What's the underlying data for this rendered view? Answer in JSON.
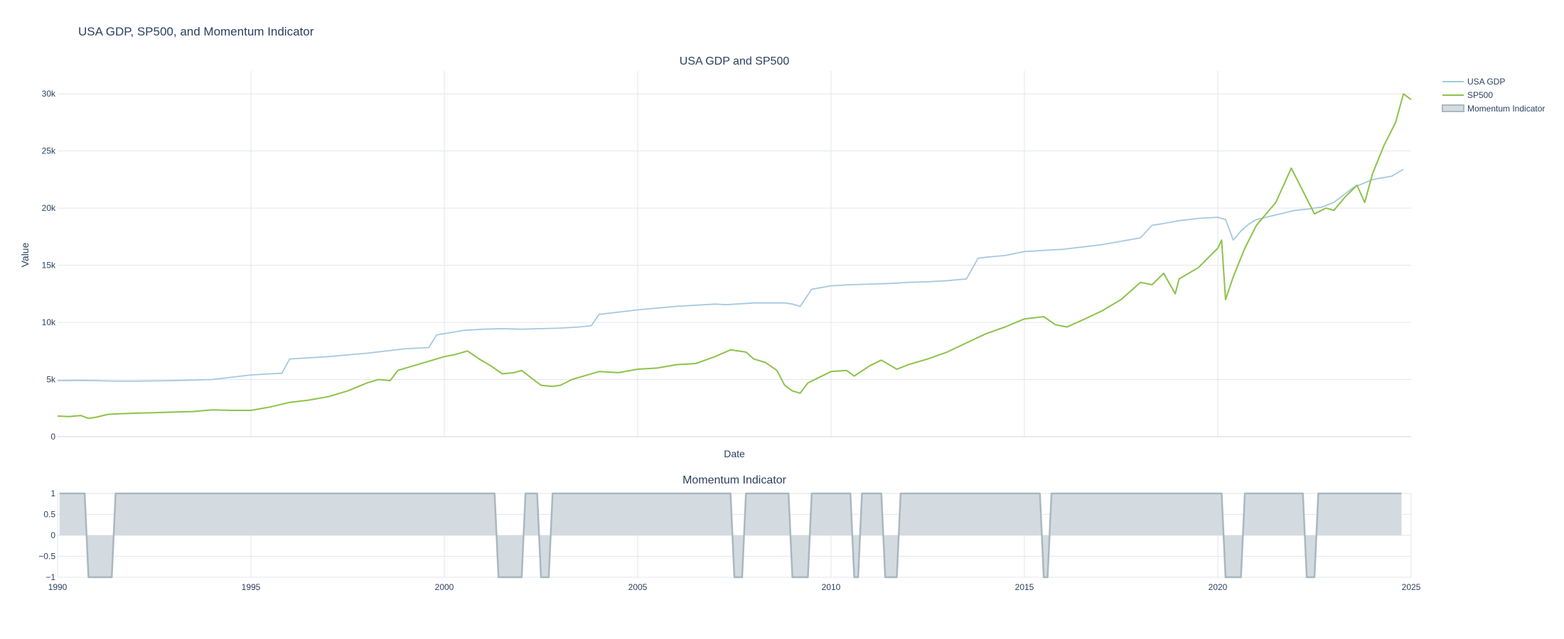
{
  "title": "USA GDP, SP500, and Momentum Indicator",
  "colors": {
    "gdp": "#a6c8e0",
    "sp500": "#8cc24a",
    "momentum_line": "#aab7bf",
    "momentum_fill": "#d3dbe0",
    "grid": "#e3e6ec",
    "text": "#2a3f5f"
  },
  "chart_data": [
    {
      "type": "line",
      "title": "USA GDP and SP500",
      "xlabel": "Date",
      "ylabel": "Value",
      "xlim": [
        1990,
        2025
      ],
      "ylim": [
        0,
        32000
      ],
      "x_ticks": [
        1995,
        2000,
        2005,
        2010,
        2015,
        2020
      ],
      "y_ticks": [
        0,
        5000,
        10000,
        15000,
        20000,
        25000,
        30000
      ],
      "y_tick_labels": [
        "0",
        "5k",
        "10k",
        "15k",
        "20k",
        "25k",
        "30k"
      ],
      "grid": true,
      "legend_position": "top-right",
      "series": [
        {
          "name": "USA GDP",
          "color": "#a6c8e0",
          "x": [
            1990.0,
            1990.5,
            1991.0,
            1991.5,
            1992.0,
            1993.0,
            1993.5,
            1994.0,
            1995.0,
            1995.5,
            1995.8,
            1996.0,
            1997.0,
            1998.0,
            1999.0,
            1999.6,
            1999.8,
            2000.5,
            2001.0,
            2001.5,
            2002.0,
            2002.5,
            2003.0,
            2003.5,
            2003.8,
            2004.0,
            2005.0,
            2006.0,
            2007.0,
            2007.3,
            2008.0,
            2008.8,
            2009.0,
            2009.2,
            2009.5,
            2010.0,
            2010.5,
            2011.0,
            2011.5,
            2012.0,
            2012.5,
            2013.0,
            2013.5,
            2013.8,
            2014.0,
            2014.5,
            2015.0,
            2015.5,
            2016.0,
            2017.0,
            2018.0,
            2018.3,
            2018.5,
            2019.0,
            2019.5,
            2020.0,
            2020.2,
            2020.4,
            2020.6,
            2020.8,
            2021.0,
            2021.5,
            2022.0,
            2022.3,
            2022.7,
            2023.0,
            2023.5,
            2024.0,
            2024.5,
            2024.8
          ],
          "y": [
            4900,
            4920,
            4900,
            4850,
            4860,
            4900,
            4950,
            5000,
            5400,
            5500,
            5550,
            6800,
            7000,
            7300,
            7700,
            7800,
            8900,
            9300,
            9400,
            9450,
            9400,
            9450,
            9500,
            9600,
            9700,
            10700,
            11100,
            11400,
            11600,
            11550,
            11700,
            11700,
            11600,
            11400,
            12900,
            13200,
            13300,
            13350,
            13400,
            13500,
            13550,
            13650,
            13800,
            15600,
            15700,
            15850,
            16200,
            16300,
            16400,
            16800,
            17400,
            18500,
            18600,
            18900,
            19100,
            19200,
            19000,
            17200,
            18000,
            18600,
            19000,
            19400,
            19800,
            19900,
            20100,
            20500,
            21800,
            22500,
            22800,
            23400
          ]
        },
        {
          "name": "SP500",
          "color": "#8cc24a",
          "x": [
            1990.0,
            1990.3,
            1990.6,
            1990.8,
            1991.0,
            1991.3,
            1991.6,
            1992.0,
            1992.5,
            1993.0,
            1993.5,
            1994.0,
            1994.5,
            1995.0,
            1995.5,
            1996.0,
            1996.5,
            1997.0,
            1997.5,
            1998.0,
            1998.3,
            1998.6,
            1998.8,
            1999.0,
            1999.5,
            2000.0,
            2000.3,
            2000.6,
            2000.9,
            2001.2,
            2001.5,
            2001.8,
            2002.0,
            2002.3,
            2002.5,
            2002.8,
            2003.0,
            2003.3,
            2003.6,
            2004.0,
            2004.5,
            2005.0,
            2005.5,
            2006.0,
            2006.5,
            2007.0,
            2007.4,
            2007.8,
            2008.0,
            2008.3,
            2008.6,
            2008.8,
            2009.0,
            2009.2,
            2009.4,
            2009.7,
            2010.0,
            2010.4,
            2010.6,
            2011.0,
            2011.3,
            2011.7,
            2012.0,
            2012.5,
            2013.0,
            2013.5,
            2014.0,
            2014.5,
            2015.0,
            2015.5,
            2015.8,
            2016.1,
            2016.5,
            2017.0,
            2017.5,
            2018.0,
            2018.3,
            2018.6,
            2018.9,
            2019.0,
            2019.5,
            2020.0,
            2020.1,
            2020.2,
            2020.4,
            2020.7,
            2021.0,
            2021.5,
            2021.9,
            2022.2,
            2022.5,
            2022.8,
            2023.0,
            2023.3,
            2023.6,
            2023.8,
            2024.0,
            2024.3,
            2024.6,
            2024.8,
            2025.0
          ],
          "y": [
            1800,
            1750,
            1850,
            1600,
            1700,
            1950,
            2000,
            2050,
            2100,
            2150,
            2200,
            2350,
            2300,
            2300,
            2600,
            3000,
            3200,
            3500,
            4000,
            4700,
            5000,
            4900,
            5800,
            6000,
            6500,
            7000,
            7200,
            7500,
            6800,
            6200,
            5500,
            5600,
            5800,
            5000,
            4500,
            4400,
            4500,
            5000,
            5300,
            5700,
            5600,
            5900,
            6000,
            6300,
            6400,
            7000,
            7600,
            7400,
            6800,
            6500,
            5800,
            4500,
            4000,
            3800,
            4700,
            5200,
            5700,
            5800,
            5300,
            6200,
            6700,
            5900,
            6300,
            6800,
            7400,
            8200,
            9000,
            9600,
            10300,
            10500,
            9800,
            9600,
            10200,
            11000,
            12000,
            13500,
            13300,
            14300,
            12500,
            13800,
            14800,
            16500,
            17200,
            12000,
            14000,
            16500,
            18500,
            20500,
            23500,
            21500,
            19500,
            20000,
            19800,
            21000,
            22000,
            20500,
            23000,
            25500,
            27500,
            30000,
            29500
          ]
        }
      ]
    },
    {
      "type": "area",
      "title": "Momentum Indicator",
      "xlim": [
        1990,
        2025
      ],
      "ylim": [
        -1,
        1
      ],
      "x_ticks": [
        1990,
        1995,
        2000,
        2005,
        2010,
        2015,
        2020,
        2025
      ],
      "y_ticks": [
        -1,
        -0.5,
        0,
        0.5,
        1
      ],
      "y_tick_labels": [
        "−1",
        "−0.5",
        "0",
        "0.5",
        "1"
      ],
      "grid": true,
      "series": [
        {
          "name": "Momentum Indicator",
          "color": "#aab7bf",
          "x": [
            1990.05,
            1990.7,
            1990.8,
            1991.4,
            1991.5,
            2001.3,
            2001.4,
            2002.0,
            2002.1,
            2002.4,
            2002.5,
            2002.7,
            2002.8,
            2007.4,
            2007.5,
            2007.7,
            2007.8,
            2008.9,
            2009.0,
            2009.4,
            2009.5,
            2010.5,
            2010.6,
            2010.7,
            2010.8,
            2011.3,
            2011.4,
            2011.7,
            2011.8,
            2015.4,
            2015.5,
            2015.6,
            2015.7,
            2020.1,
            2020.2,
            2020.6,
            2020.7,
            2022.2,
            2022.3,
            2022.5,
            2022.6,
            2024.75
          ],
          "y": [
            1,
            1,
            -1,
            -1,
            1,
            1,
            -1,
            -1,
            1,
            1,
            -1,
            -1,
            1,
            1,
            -1,
            -1,
            1,
            1,
            -1,
            -1,
            1,
            1,
            -1,
            -1,
            1,
            1,
            -1,
            -1,
            1,
            1,
            -1,
            -1,
            1,
            1,
            -1,
            -1,
            1,
            1,
            -1,
            -1,
            1,
            1
          ]
        }
      ]
    }
  ]
}
